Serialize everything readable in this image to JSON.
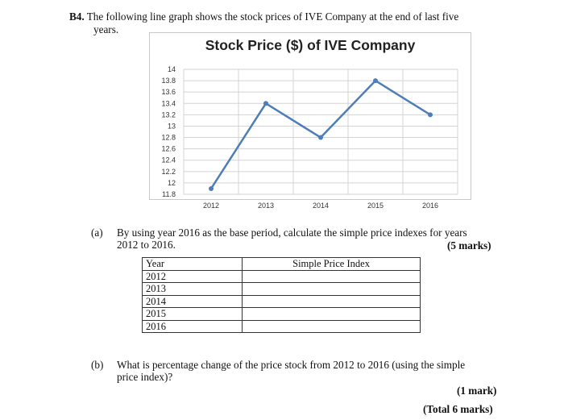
{
  "question": {
    "number": "B4.",
    "intro_line1": "The following line graph shows the stock prices of IVE Company at the end of last five",
    "intro_line2": "years."
  },
  "part_a": {
    "label": "(a)",
    "line1": "By using year 2016 as the base period, calculate the simple price indexes for years",
    "line2": "2012 to 2016.",
    "marks": "(5 marks)"
  },
  "table": {
    "headers": [
      "Year",
      "Simple Price Index"
    ],
    "rows": [
      [
        "2012",
        ""
      ],
      [
        "2013",
        ""
      ],
      [
        "2014",
        ""
      ],
      [
        "2015",
        ""
      ],
      [
        "2016",
        ""
      ]
    ]
  },
  "part_b": {
    "label": "(b)",
    "line1": "What is percentage change of the price stock from 2012 to 2016 (using the simple",
    "line2": "price index)?",
    "marks": "(1 mark)",
    "total": "(Total 6 marks)"
  },
  "chart_data": {
    "type": "line",
    "title": "Stock Price ($) of IVE Company",
    "categories": [
      "2012",
      "2013",
      "2014",
      "2015",
      "2016"
    ],
    "series": [
      {
        "values": [
          11.9,
          13.4,
          12.8,
          13.8,
          13.2
        ]
      }
    ],
    "ylim": [
      11.8,
      14
    ],
    "y_ticks": [
      "11.8",
      "12",
      "12.2",
      "12.4",
      "12.6",
      "12.8",
      "13",
      "13.2",
      "13.4",
      "13.6",
      "13.8",
      "14"
    ],
    "grid": true,
    "line_color": "#4f7db8",
    "grid_color": "#d3d3d3"
  }
}
